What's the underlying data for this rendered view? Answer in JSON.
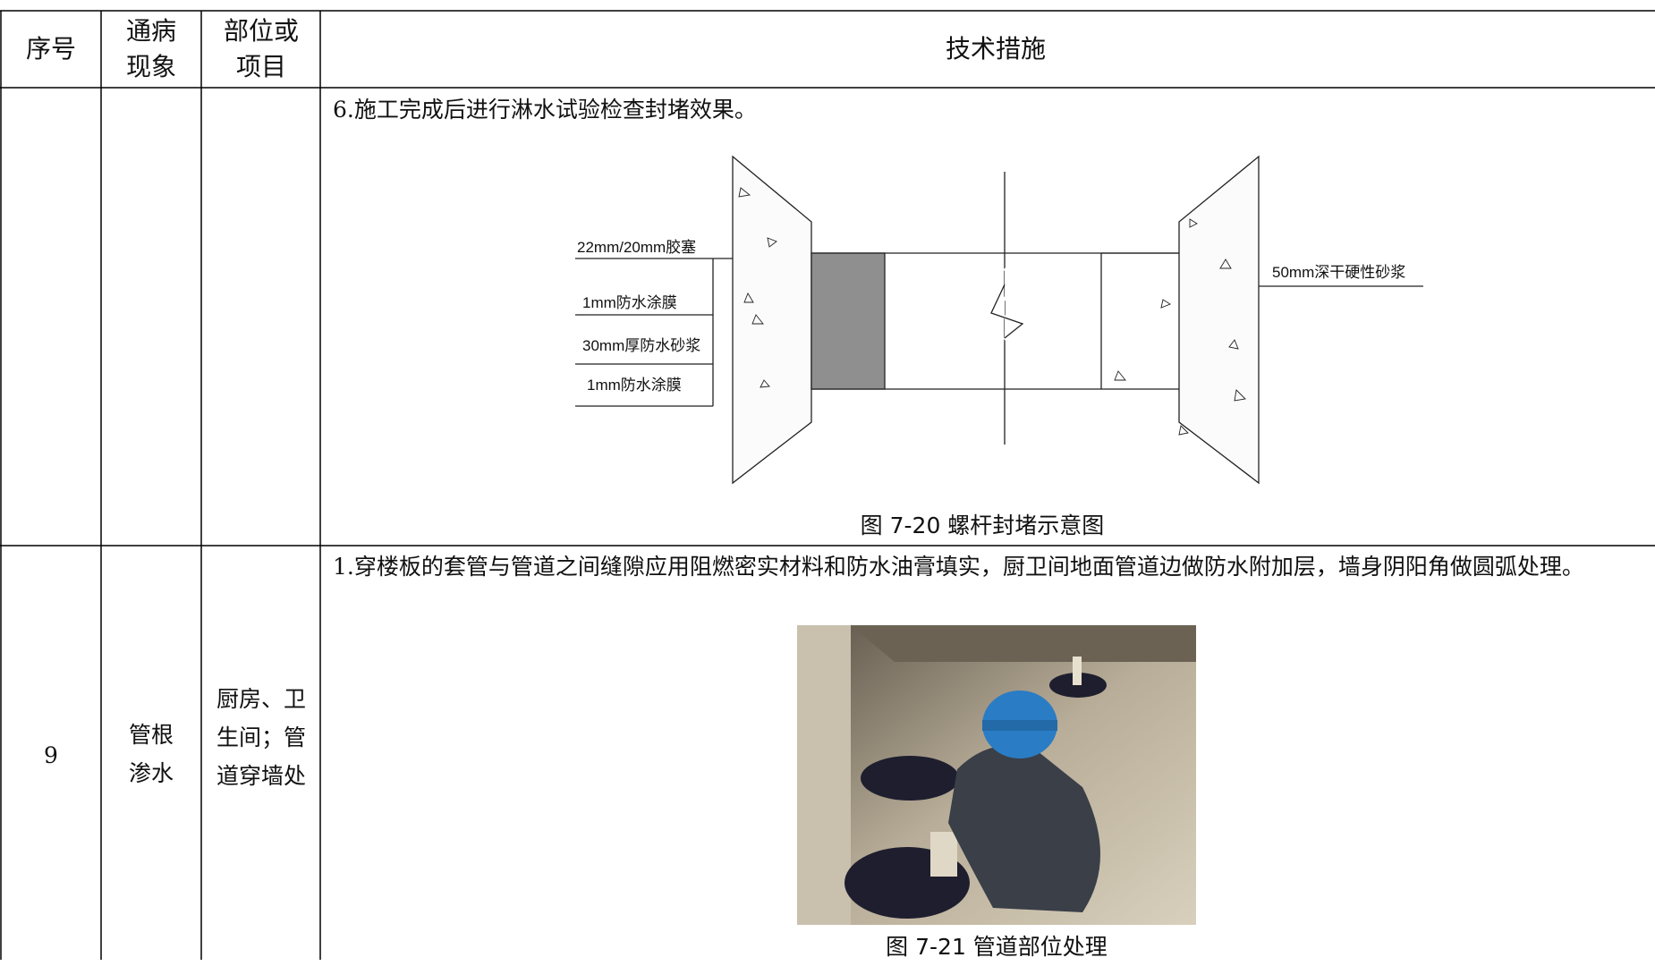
{
  "header": {
    "columns": [
      "序号",
      "通病现象",
      "部位或项目",
      "技术措施"
    ]
  },
  "rows": [
    {
      "measure_text": "6.施工完成后进行淋水试验检查封堵效果。",
      "figure": {
        "labels": [
          "22mm/20mm胶塞",
          "1mm防水涂膜",
          "30mm厚防水砂浆",
          "1mm防水涂膜",
          "50mm深干硬性砂浆"
        ],
        "caption": "图 7-20 螺杆封堵示意图"
      }
    },
    {
      "no": "9",
      "defect": "管根渗水",
      "location": "厨房、卫生间；管道穿墙处",
      "measure_text": "1.穿楼板的套管与管道之间缝隙应用阻燃密实材料和防水油膏填实，厨卫间地面管道边做防水附加层，墙身阴阳角做圆弧处理。",
      "figure": {
        "caption": "图 7-21 管道部位处理"
      }
    }
  ]
}
